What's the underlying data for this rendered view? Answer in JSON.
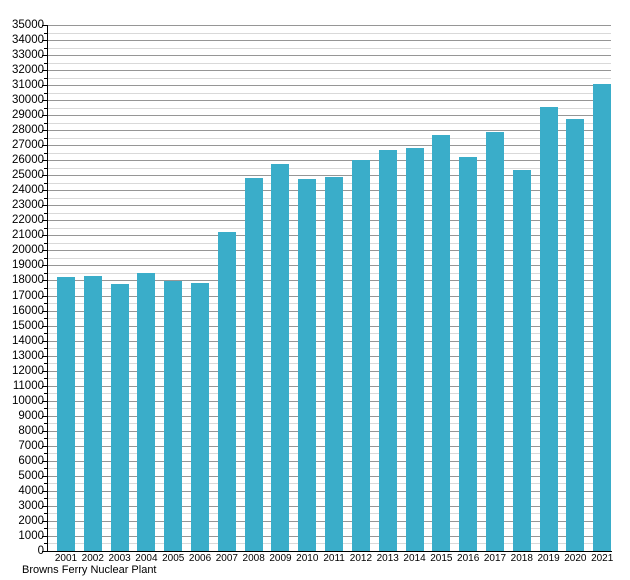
{
  "chart_data": {
    "type": "bar",
    "title": "",
    "caption": "Browns Ferry Nuclear Plant",
    "xlabel": "",
    "ylabel": "",
    "categories": [
      "2001",
      "2002",
      "2003",
      "2004",
      "2005",
      "2006",
      "2007",
      "2008",
      "2009",
      "2010",
      "2011",
      "2012",
      "2013",
      "2014",
      "2015",
      "2016",
      "2017",
      "2018",
      "2019",
      "2020",
      "2021"
    ],
    "values": [
      18250,
      18300,
      17750,
      18500,
      18000,
      17850,
      21200,
      24850,
      25750,
      24750,
      24900,
      26000,
      26700,
      26800,
      27700,
      26200,
      27850,
      25350,
      29550,
      28750,
      31100
    ],
    "ylim": [
      0,
      35000
    ],
    "y_tick_interval": 1000,
    "y_minor_interval": 500,
    "y_tick_labels": [
      "0",
      "1000",
      "2000",
      "3000",
      "4000",
      "5000",
      "6000",
      "7000",
      "8000",
      "9000",
      "10000",
      "11000",
      "12000",
      "13000",
      "14000",
      "15000",
      "16000",
      "17000",
      "18000",
      "19000",
      "20000",
      "21000",
      "22000",
      "23000",
      "24000",
      "25000",
      "26000",
      "27000",
      "28000",
      "29000",
      "30000",
      "31000",
      "32000",
      "33000",
      "34000",
      "35000"
    ],
    "grid": true,
    "legend": "none",
    "colors": {
      "bar": "#3AADC9",
      "grid_major": "#969696",
      "grid_minor": "#D9D9D9",
      "axis": "#000000",
      "text": "#000000",
      "background": "#FFFFFF"
    }
  }
}
